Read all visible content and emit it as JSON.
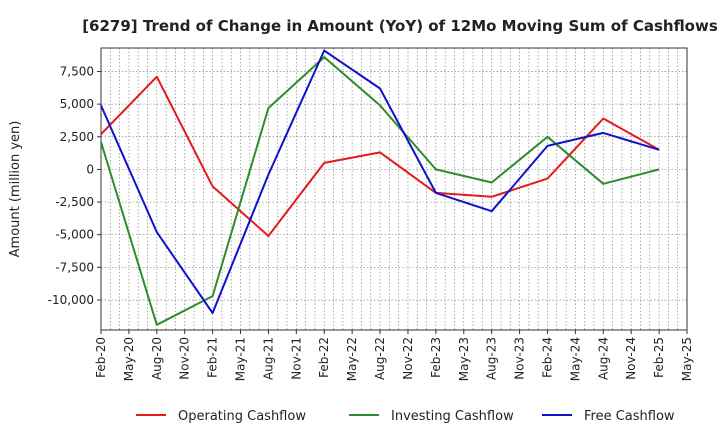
{
  "chart_data": {
    "type": "line",
    "title": "[6279]  Trend of Change in Amount (YoY) of 12Mo Moving Sum of Cashflows",
    "xlabel": "",
    "ylabel": "Amount (million yen)",
    "ylim": [
      -12300,
      9300
    ],
    "yticks": [
      7500,
      5000,
      2500,
      0,
      -2500,
      -5000,
      -7500,
      -10000
    ],
    "ytick_labels": [
      "7,500",
      "5,000",
      "2,500",
      "0",
      "-2,500",
      "-5,000",
      "-7,500",
      "-10,000"
    ],
    "categories": [
      "Feb-20",
      "May-20",
      "Aug-20",
      "Nov-20",
      "Feb-21",
      "May-21",
      "Aug-21",
      "Nov-21",
      "Feb-22",
      "May-22",
      "Aug-22",
      "Nov-22",
      "Feb-23",
      "May-23",
      "Aug-23",
      "Nov-23",
      "Feb-24",
      "May-24",
      "Aug-24",
      "Nov-24",
      "Feb-25",
      "May-25"
    ],
    "grid": true,
    "legend_position": "bottom",
    "series": [
      {
        "name": "Operating Cashflow",
        "color": "#e41a1c",
        "values": [
          2700,
          null,
          7100,
          null,
          -1300,
          null,
          -5100,
          null,
          500,
          null,
          1300,
          null,
          -1800,
          null,
          -2100,
          null,
          -700,
          null,
          3900,
          null,
          1500,
          null
        ]
      },
      {
        "name": "Investing Cashflow",
        "color": "#2e8b2e",
        "values": [
          2100,
          null,
          -11900,
          null,
          -9700,
          null,
          4700,
          null,
          8600,
          null,
          4900,
          null,
          0,
          null,
          -1000,
          null,
          2500,
          null,
          -1100,
          null,
          0,
          null
        ]
      },
      {
        "name": "Free Cashflow",
        "color": "#1111cc",
        "values": [
          4900,
          null,
          -4800,
          null,
          -11000,
          null,
          -400,
          null,
          9100,
          null,
          6200,
          null,
          -1800,
          null,
          -3200,
          null,
          1800,
          null,
          2800,
          null,
          1500,
          null
        ]
      }
    ]
  }
}
